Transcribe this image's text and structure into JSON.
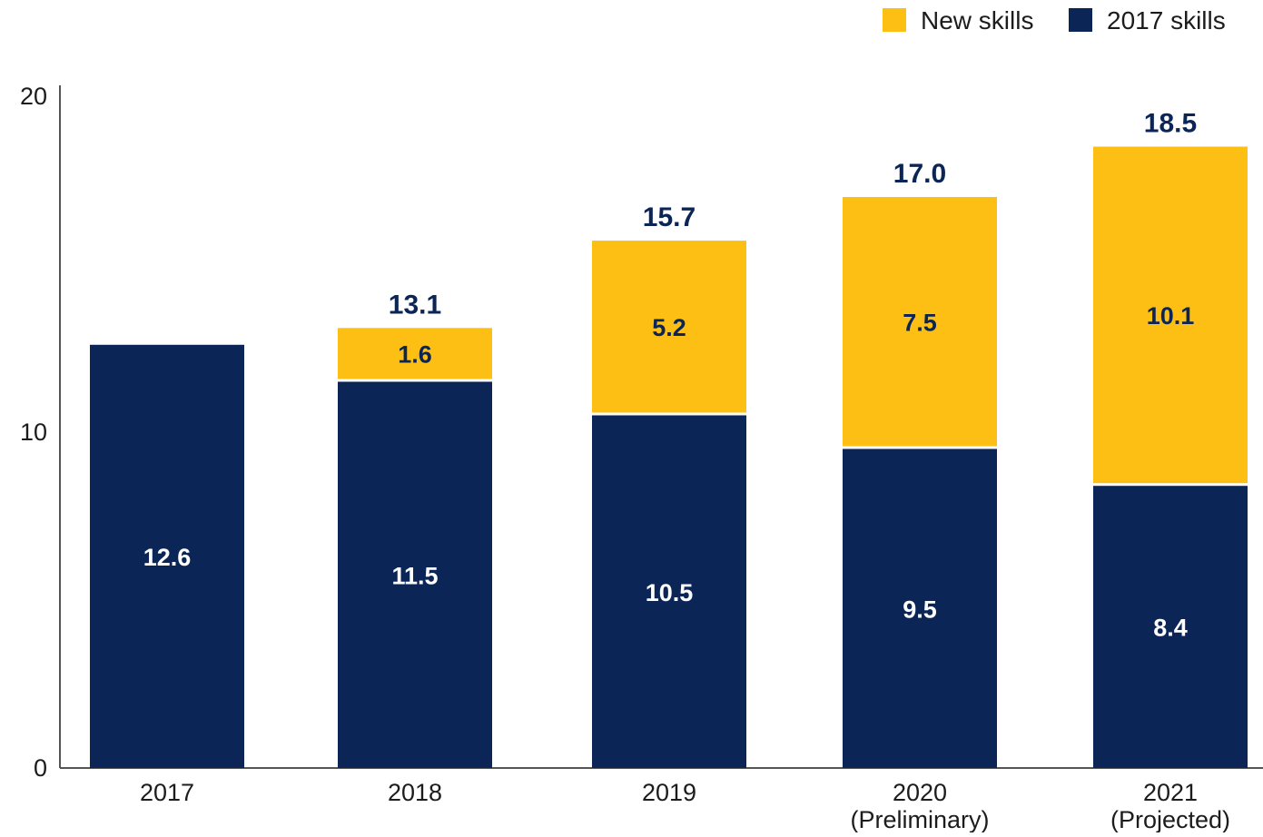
{
  "chart_data": {
    "type": "bar",
    "stacked": true,
    "categories": [
      [
        "2017"
      ],
      [
        "2018"
      ],
      [
        "2019"
      ],
      [
        "2020",
        "(Preliminary)"
      ],
      [
        "2021",
        "(Projected)"
      ]
    ],
    "series": [
      {
        "name": "2017 skills",
        "color": "#0b2656",
        "label_color": "#ffffff",
        "values": [
          12.6,
          11.5,
          10.5,
          9.5,
          8.4
        ],
        "labels": [
          "12.6",
          "11.5",
          "10.5",
          "9.5",
          "8.4"
        ]
      },
      {
        "name": "New skills",
        "color": "#fdbf14",
        "label_color": "#0b2656",
        "values": [
          0,
          1.6,
          5.2,
          7.5,
          10.1
        ],
        "labels": [
          "",
          "1.6",
          "5.2",
          "7.5",
          "10.1"
        ]
      }
    ],
    "totals": [
      "",
      "13.1",
      "15.7",
      "17.0",
      "18.5"
    ],
    "ylim": [
      0,
      20
    ],
    "yticks": [
      "0",
      "10",
      "20"
    ],
    "grid": false,
    "legend": {
      "placement": "top-right",
      "order": [
        "New skills",
        "2017 skills"
      ]
    },
    "title": "",
    "xlabel": "",
    "ylabel": ""
  }
}
